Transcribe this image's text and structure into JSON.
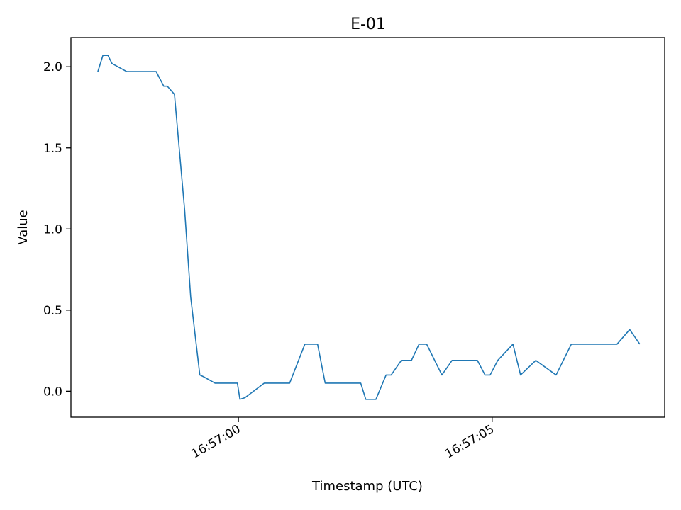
{
  "chart_data": {
    "type": "line",
    "title": "E-01",
    "xlabel": "Timestamp (UTC)",
    "ylabel": "Value",
    "xlim": [
      "16:56:56.70",
      "16:57:08.40"
    ],
    "ylim": [
      -0.16,
      2.18
    ],
    "x_ticks": [
      {
        "label": "16:57:00",
        "value": "16:57:00.00"
      },
      {
        "label": "16:57:05",
        "value": "16:57:05.00"
      }
    ],
    "y_ticks": [
      {
        "label": "0.0",
        "value": 0.0
      },
      {
        "label": "0.5",
        "value": 0.5
      },
      {
        "label": "1.0",
        "value": 1.0
      },
      {
        "label": "1.5",
        "value": 1.5
      },
      {
        "label": "2.0",
        "value": 2.0
      }
    ],
    "grid": false,
    "series": [
      {
        "color": "#1f77b4",
        "x": [
          "16:56:57.23",
          "16:56:57.33",
          "16:56:57.43",
          "16:56:57.51",
          "16:56:57.80",
          "16:56:58.09",
          "16:56:58.38",
          "16:56:58.53",
          "16:56:58.60",
          "16:56:58.74",
          "16:56:58.94",
          "16:56:59.06",
          "16:56:59.24",
          "16:56:59.31",
          "16:56:59.54",
          "16:56:59.98",
          "16:57:00.03",
          "16:57:00.13",
          "16:57:00.51",
          "16:57:01.01",
          "16:57:01.31",
          "16:57:01.56",
          "16:57:01.71",
          "16:57:02.01",
          "16:57:02.41",
          "16:57:02.51",
          "16:57:02.71",
          "16:57:02.91",
          "16:57:03.01",
          "16:57:03.21",
          "16:57:03.41",
          "16:57:03.56",
          "16:57:03.71",
          "16:57:04.01",
          "16:57:04.21",
          "16:57:04.41",
          "16:57:04.71",
          "16:57:04.86",
          "16:57:04.96",
          "16:57:05.11",
          "16:57:05.41",
          "16:57:05.56",
          "16:57:05.86",
          "16:57:06.26",
          "16:57:06.56",
          "16:57:07.46",
          "16:57:07.71",
          "16:57:07.91"
        ],
        "y": [
          1.97,
          2.07,
          2.07,
          2.02,
          1.97,
          1.97,
          1.97,
          1.88,
          1.88,
          1.83,
          1.12,
          0.58,
          0.1,
          0.09,
          0.05,
          0.05,
          -0.05,
          -0.04,
          0.05,
          0.05,
          0.29,
          0.29,
          0.05,
          0.05,
          0.05,
          -0.05,
          -0.05,
          0.1,
          0.1,
          0.19,
          0.19,
          0.29,
          0.29,
          0.1,
          0.19,
          0.19,
          0.19,
          0.1,
          0.1,
          0.19,
          0.29,
          0.1,
          0.19,
          0.1,
          0.29,
          0.29,
          0.38,
          0.29
        ]
      }
    ]
  }
}
